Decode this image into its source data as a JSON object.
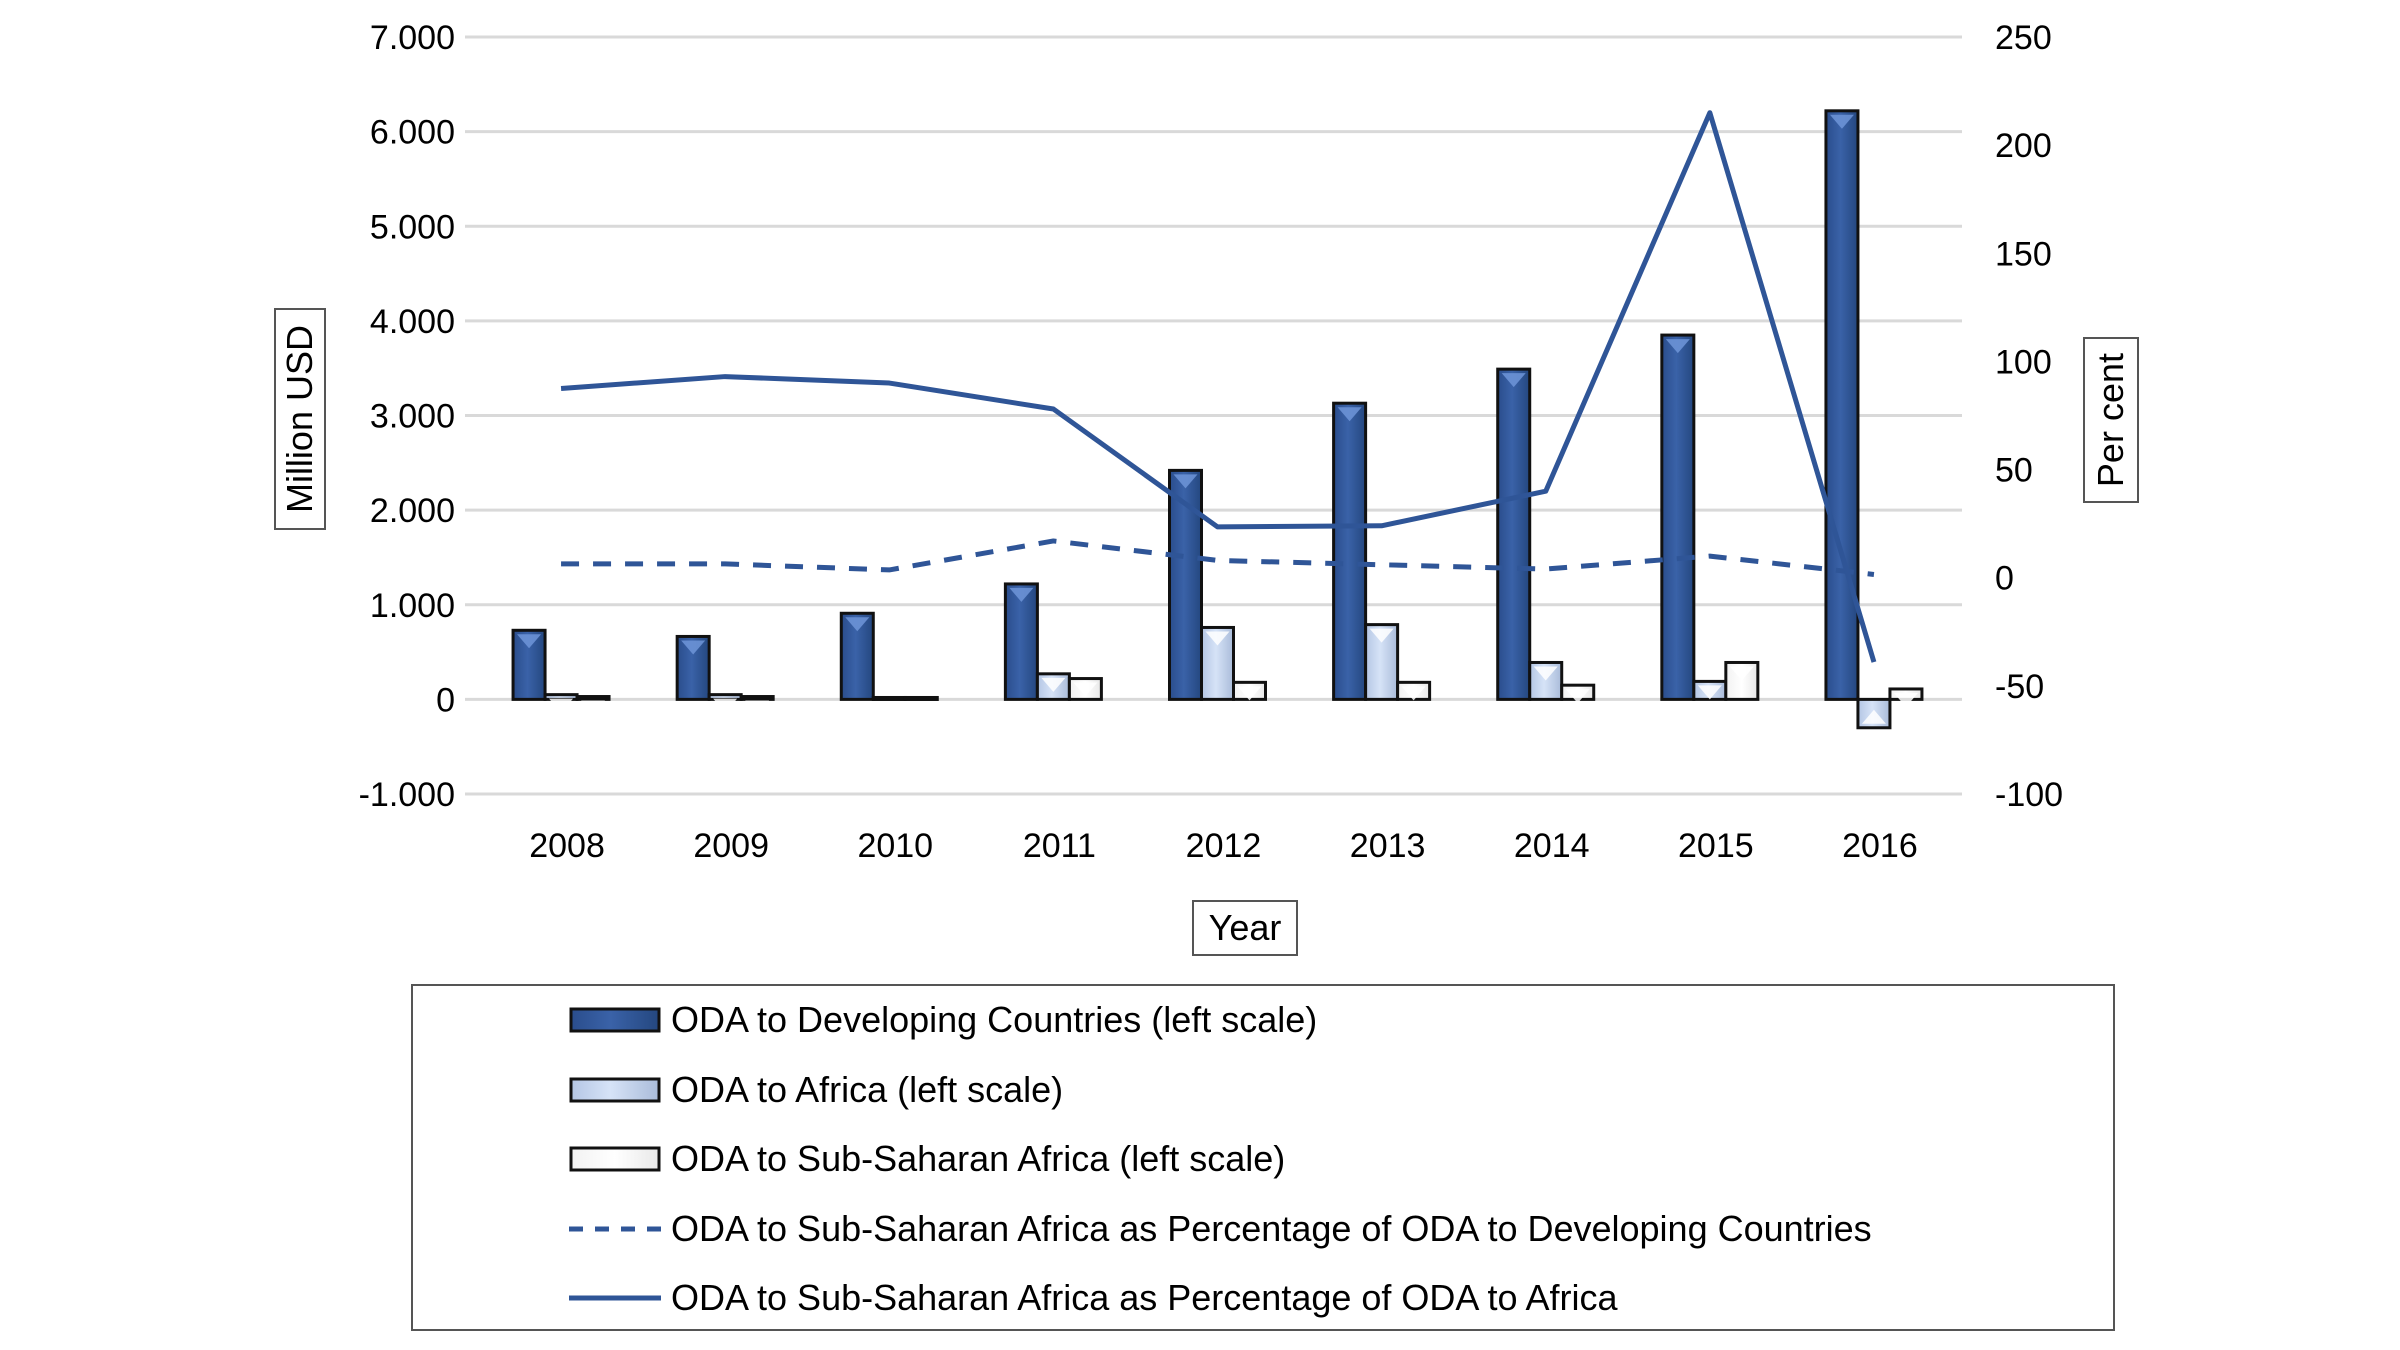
{
  "chart_data": {
    "type": "bar",
    "xlabel": "Year",
    "ylabel": "Million USD",
    "y2label": "Per cent",
    "categories": [
      "2008",
      "2009",
      "2010",
      "2011",
      "2012",
      "2013",
      "2014",
      "2015",
      "2016"
    ],
    "ylim": [
      -1000,
      7000
    ],
    "yticks": [
      "-1.000",
      "0",
      "1.000",
      "2.000",
      "3.000",
      "4.000",
      "5.000",
      "6.000",
      "7.000"
    ],
    "ytick_values": [
      -1000,
      0,
      1000,
      2000,
      3000,
      4000,
      5000,
      6000,
      7000
    ],
    "y2lim": [
      -100,
      250
    ],
    "y2ticks": [
      "-100",
      "-50",
      "0",
      "50",
      "100",
      "150",
      "200",
      "250"
    ],
    "y2tick_values": [
      -100,
      -50,
      0,
      50,
      100,
      150,
      200,
      250
    ],
    "grid": true,
    "legend_placement": "bottom",
    "series": [
      {
        "name": "ODA to Developing Countries (left scale)",
        "type": "bar",
        "axis": "left",
        "color": "#2f5597",
        "values": [
          730,
          665,
          910,
          1220,
          2420,
          3130,
          3490,
          3850,
          6220
        ]
      },
      {
        "name": "ODA to Africa (left scale)",
        "type": "bar",
        "axis": "left",
        "color": "#c5d6f0",
        "values": [
          50,
          50,
          20,
          270,
          760,
          790,
          390,
          190,
          -300
        ]
      },
      {
        "name": "ODA to Sub-Saharan Africa (left scale)",
        "type": "bar",
        "axis": "left",
        "color": "#ffffff",
        "values": [
          30,
          30,
          20,
          220,
          180,
          180,
          150,
          390,
          110
        ]
      },
      {
        "name": "ODA to Sub-Saharan Africa as Percentage of ODA to Developing Countries",
        "type": "line",
        "style": "dashed",
        "axis": "right",
        "color": "#2f5597",
        "values": [
          6.4,
          6.4,
          3.6,
          17,
          8,
          6,
          4,
          10,
          1.5
        ]
      },
      {
        "name": "ODA to Sub-Saharan Africa as Percentage of ODA to Africa",
        "type": "line",
        "style": "solid",
        "axis": "right",
        "color": "#2f5597",
        "values": [
          87.5,
          93,
          90,
          78,
          23.5,
          24,
          40,
          215,
          -39
        ]
      }
    ]
  }
}
